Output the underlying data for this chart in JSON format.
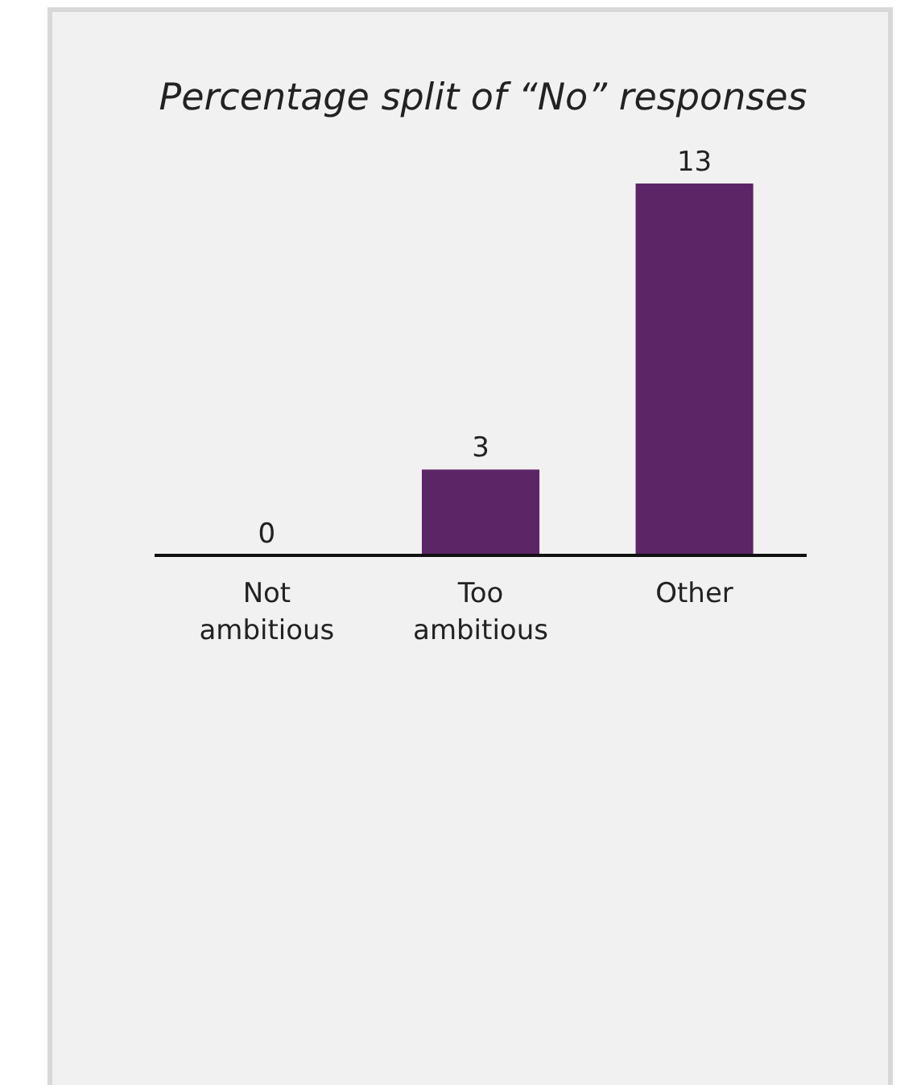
{
  "chart_data": {
    "type": "bar",
    "title": "Percentage split of “No” responses",
    "categories": [
      "Not ambitious",
      "Too ambitious",
      "Other"
    ],
    "values": [
      0,
      3,
      13
    ],
    "color": "#5c2566",
    "data_labels": true
  }
}
